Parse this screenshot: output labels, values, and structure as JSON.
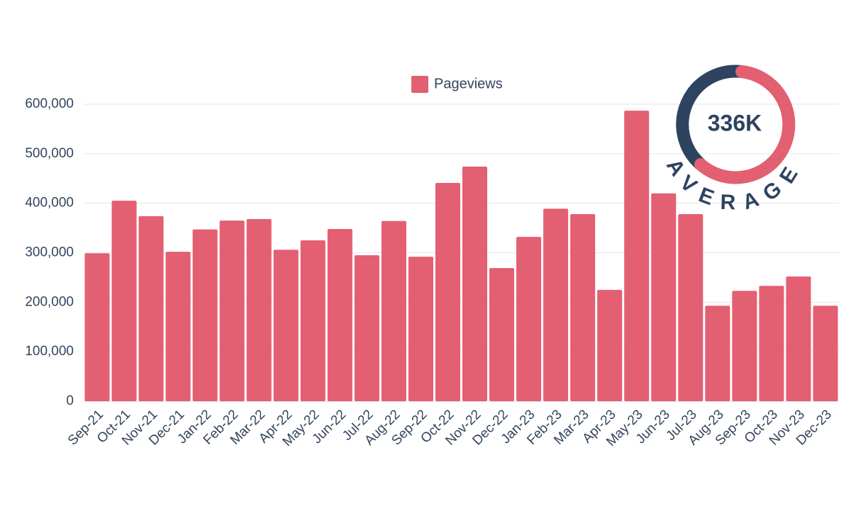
{
  "chart_data": {
    "type": "bar",
    "legend": "Pageviews",
    "color": "#e35f72",
    "categories": [
      "Sep-21",
      "Oct-21",
      "Nov-21",
      "Dec-21",
      "Jan-22",
      "Feb-22",
      "Mar-22",
      "Apr-22",
      "May-22",
      "Jun-22",
      "Jul-22",
      "Aug-22",
      "Sep-22",
      "Oct-22",
      "Nov-22",
      "Dec-22",
      "Jan-23",
      "Feb-23",
      "Mar-23",
      "Apr-23",
      "May-23",
      "Jun-23",
      "Jul-23",
      "Aug-23",
      "Sep-23",
      "Oct-23",
      "Nov-23",
      "Dec-23"
    ],
    "values": [
      299000,
      405000,
      374000,
      302000,
      347000,
      365000,
      368000,
      306000,
      325000,
      348000,
      295000,
      364000,
      292000,
      441000,
      474000,
      269000,
      332000,
      389000,
      378000,
      225000,
      587000,
      420000,
      378000,
      193000,
      223000,
      233000,
      252000,
      193000
    ],
    "ylim": [
      0,
      600000
    ],
    "yticks": [
      0,
      {
        "value": 100000,
        "label": "100,000"
      },
      {
        "value": 200000,
        "label": "200,000"
      },
      {
        "value": 300000,
        "label": "300,000"
      },
      {
        "value": 400000,
        "label": "400,000"
      },
      {
        "value": 500000,
        "label": "500,000"
      },
      {
        "value": 600000,
        "label": "600,000"
      }
    ],
    "grid": true,
    "annotations": [
      "336K",
      "AVERAGE"
    ]
  }
}
